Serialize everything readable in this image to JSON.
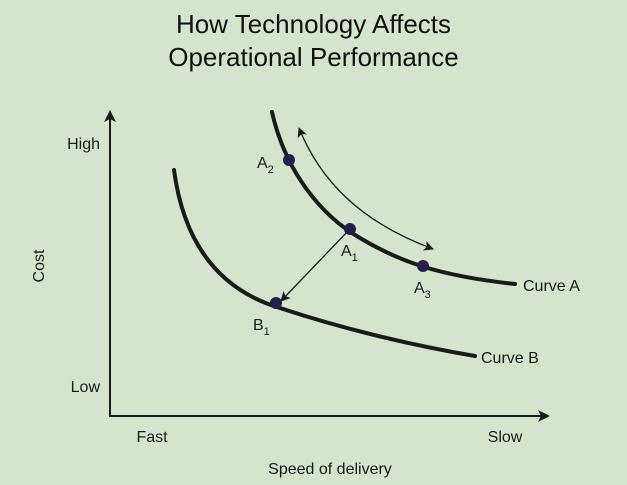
{
  "title": {
    "line1": "How Technology Affects",
    "line2": "Operational Performance"
  },
  "axes": {
    "y_label": "Cost",
    "y_high": "High",
    "y_low": "Low",
    "x_label": "Speed of delivery",
    "x_fast": "Fast",
    "x_slow": "Slow"
  },
  "curves": {
    "a_label": "Curve A",
    "b_label": "Curve B"
  },
  "points": {
    "a2": {
      "main": "A",
      "sub": "2"
    },
    "a1": {
      "main": "A",
      "sub": "1"
    },
    "a3": {
      "main": "A",
      "sub": "3"
    },
    "b1": {
      "main": "B",
      "sub": "1"
    }
  },
  "colors": {
    "background": "#d5e4cd",
    "curve": "#1a1a1a",
    "point": "#231f4a"
  }
}
